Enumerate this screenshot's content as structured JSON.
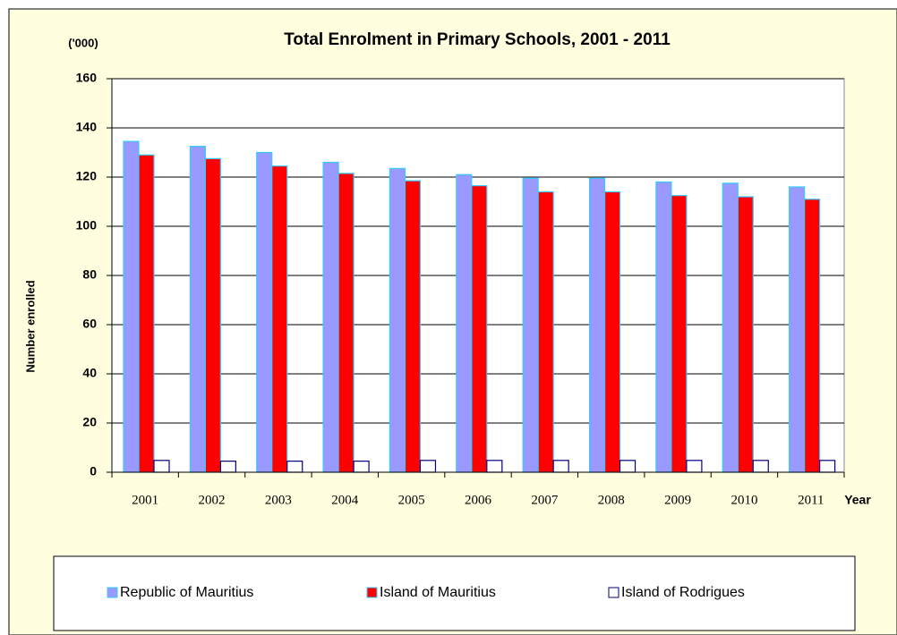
{
  "chart_data": {
    "type": "bar",
    "title": "Total Enrolment in Primary Schools, 2001 - 2011",
    "unit_label": "('000)",
    "y_label": "Number enrolled",
    "x_label": "Year",
    "categories": [
      "2001",
      "2002",
      "2003",
      "2004",
      "2005",
      "2006",
      "2007",
      "2008",
      "2009",
      "2010",
      "2011"
    ],
    "series": [
      {
        "name": "Republic of Mauritius",
        "color": "#9999ff",
        "edge": "#33ccff",
        "values": [
          134.5,
          132.5,
          130,
          126,
          123.5,
          121,
          119.5,
          119.5,
          118,
          117.5,
          116
        ]
      },
      {
        "name": "Island of Mauritius",
        "color": "#ff0000",
        "edge": "#33ccff",
        "values": [
          129,
          127.5,
          124.5,
          121.5,
          118.5,
          116.5,
          114,
          114,
          112.5,
          112,
          111
        ]
      },
      {
        "name": "Island of Rodrigues",
        "color": "#ffffff",
        "edge": "#000080",
        "values": [
          4.8,
          4.5,
          4.5,
          4.5,
          4.8,
          4.8,
          4.8,
          4.8,
          4.8,
          4.8,
          4.8
        ]
      }
    ],
    "ylim": [
      0,
      160
    ],
    "yticks": [
      0,
      20,
      40,
      60,
      80,
      100,
      120,
      140,
      160
    ],
    "grid": true,
    "legend": "bottom"
  }
}
